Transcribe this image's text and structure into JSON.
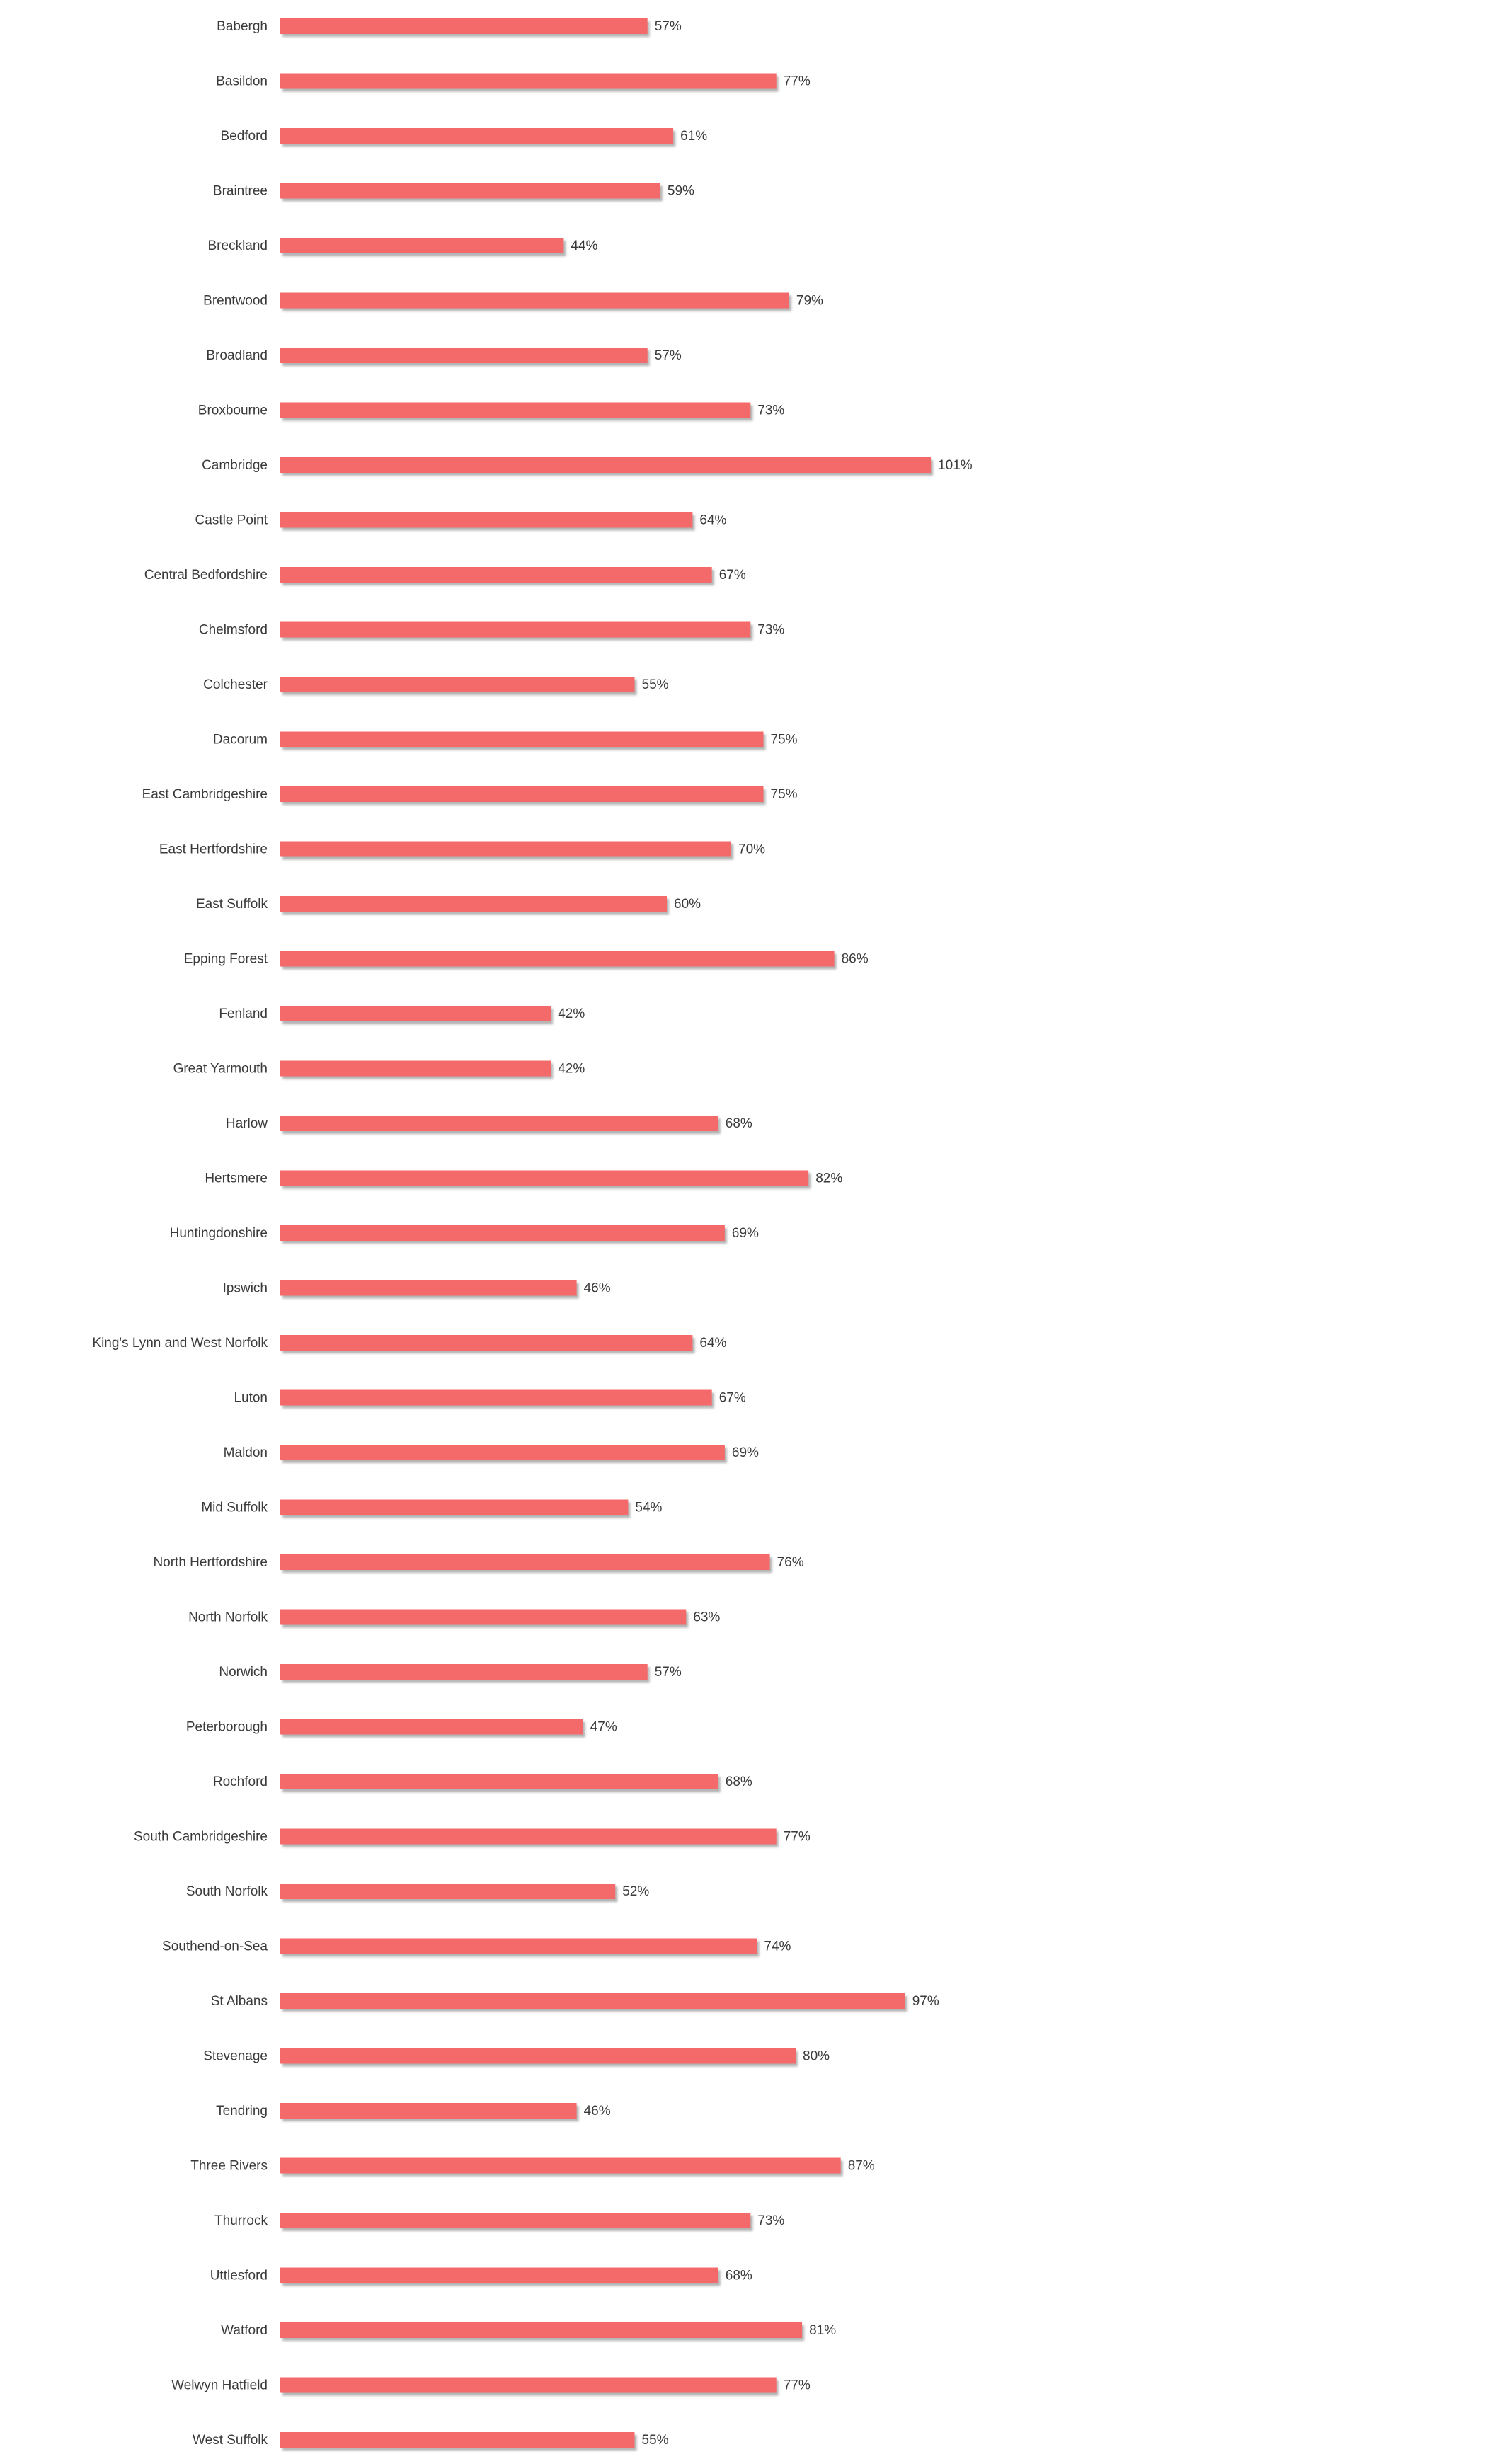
{
  "chart_data": {
    "type": "bar",
    "orientation": "horizontal",
    "unit": "%",
    "bar_color": "#f46b6b",
    "shadow_color": "#b0b0b0",
    "label_color": "#3a3a3a",
    "categories": [
      "Babergh",
      "Basildon",
      "Bedford",
      "Braintree",
      "Breckland",
      "Brentwood",
      "Broadland",
      "Broxbourne",
      "Cambridge",
      "Castle Point",
      "Central Bedfordshire",
      "Chelmsford",
      "Colchester",
      "Dacorum",
      "East Cambridgeshire",
      "East Hertfordshire",
      "East Suffolk",
      "Epping Forest",
      "Fenland",
      "Great Yarmouth",
      "Harlow",
      "Hertsmere",
      "Huntingdonshire",
      "Ipswich",
      "King's Lynn and West Norfolk",
      "Luton",
      "Maldon",
      "Mid Suffolk",
      "North Hertfordshire",
      "North Norfolk",
      "Norwich",
      "Peterborough",
      "Rochford",
      "South Cambridgeshire",
      "South Norfolk",
      "Southend-on-Sea",
      "St Albans",
      "Stevenage",
      "Tendring",
      "Three Rivers",
      "Thurrock",
      "Uttlesford",
      "Watford",
      "Welwyn Hatfield",
      "West Suffolk"
    ],
    "values": [
      57,
      77,
      61,
      59,
      44,
      79,
      57,
      73,
      101,
      64,
      67,
      73,
      55,
      75,
      75,
      70,
      60,
      86,
      42,
      42,
      68,
      82,
      69,
      46,
      64,
      67,
      69,
      54,
      76,
      63,
      57,
      47,
      68,
      77,
      52,
      74,
      97,
      80,
      46,
      87,
      73,
      68,
      81,
      77,
      55
    ],
    "value_labels": [
      "57%",
      "77%",
      "61%",
      "59%",
      "44%",
      "79%",
      "57%",
      "73%",
      "101%",
      "64%",
      "67%",
      "73%",
      "55%",
      "75%",
      "75%",
      "70%",
      "60%",
      "86%",
      "42%",
      "42%",
      "68%",
      "82%",
      "69%",
      "46%",
      "64%",
      "67%",
      "69%",
      "54%",
      "76%",
      "63%",
      "57%",
      "47%",
      "68%",
      "77%",
      "52%",
      "74%",
      "97%",
      "80%",
      "46%",
      "87%",
      "73%",
      "68%",
      "81%",
      "77%",
      "55%"
    ],
    "title": "",
    "xlabel": "",
    "ylabel": "",
    "xlim": [
      0,
      101
    ],
    "grid": false,
    "legend": "none"
  }
}
